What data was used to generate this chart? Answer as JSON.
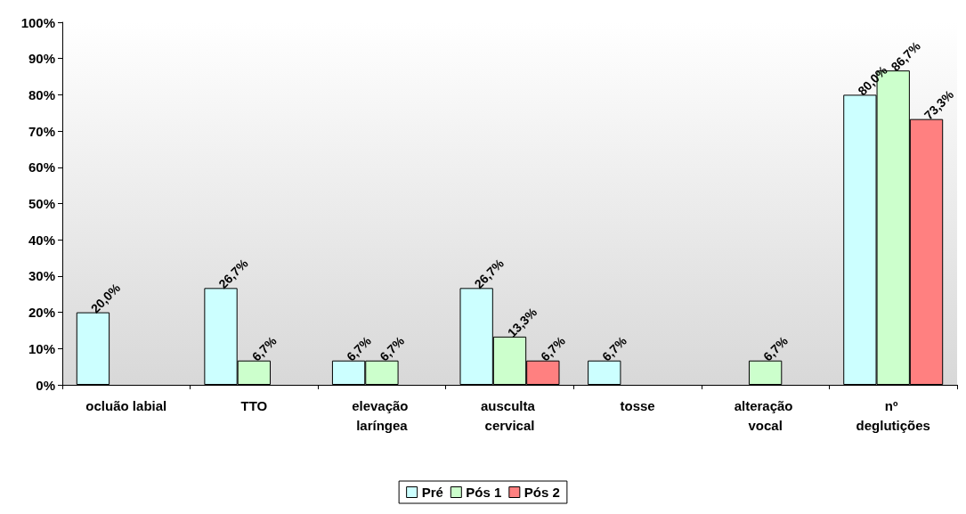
{
  "chart_data": {
    "type": "bar",
    "categories": [
      "ocluão labial",
      "TTO",
      "elevação laríngea",
      "ausculta cervical",
      "tosse",
      "alteração vocal",
      "nº deglutições"
    ],
    "series": [
      {
        "name": "Pré",
        "color": "#ccffff",
        "values": [
          20.0,
          26.7,
          6.7,
          26.7,
          6.7,
          null,
          80.0
        ],
        "value_labels": [
          "20,0%",
          "26,7%",
          "6,7%",
          "26,7%",
          "6,7%",
          null,
          "80,0%"
        ]
      },
      {
        "name": "Pós 1",
        "color": "#ccffcc",
        "values": [
          null,
          6.7,
          6.7,
          13.3,
          null,
          6.7,
          86.7
        ],
        "value_labels": [
          null,
          "6,7%",
          "6,7%",
          "13,3%",
          null,
          "6,7%",
          "86,7%"
        ]
      },
      {
        "name": "Pós 2",
        "color": "#ff8080",
        "values": [
          null,
          null,
          null,
          6.7,
          null,
          null,
          73.3
        ],
        "value_labels": [
          null,
          null,
          null,
          "6,7%",
          null,
          null,
          "73,3%"
        ]
      }
    ],
    "ylim": [
      0,
      100
    ],
    "yticks": [
      {
        "value": 0,
        "label": "0%"
      },
      {
        "value": 10,
        "label": "10%"
      },
      {
        "value": 20,
        "label": "20%"
      },
      {
        "value": 30,
        "label": "30%"
      },
      {
        "value": 40,
        "label": "40%"
      },
      {
        "value": 50,
        "label": "50%"
      },
      {
        "value": 60,
        "label": "60%"
      },
      {
        "value": 70,
        "label": "70%"
      },
      {
        "value": 80,
        "label": "80%"
      },
      {
        "value": 90,
        "label": "90%"
      },
      {
        "value": 100,
        "label": "100%"
      }
    ],
    "grid": false,
    "legend": "bottom"
  }
}
